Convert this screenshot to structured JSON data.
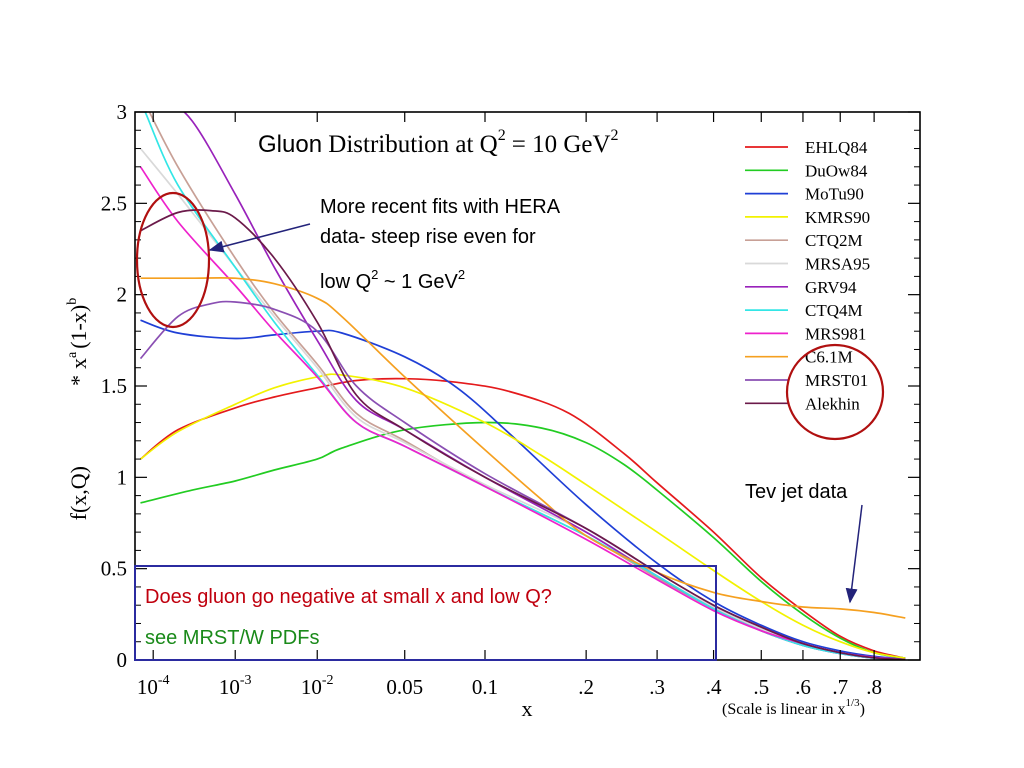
{
  "chart_data": {
    "type": "line",
    "title": {
      "word": "Gluon",
      "rest": "Distribution at Q",
      "sup": "2",
      "tail": "= 10 GeV",
      "sup2": "2"
    },
    "xlabel": "x",
    "x_scale_note": "(Scale is linear in x",
    "x_scale_note_sup": "1/3",
    "x_scale_note_close": ")",
    "ylabel": {
      "lower": "f(x,Q)",
      "star": "*",
      "x": "x",
      "a": "a",
      "mid": "(1-x)",
      "b": "b"
    },
    "xlim": [
      6e-05,
      0.95
    ],
    "ylim": [
      0,
      3
    ],
    "x_ticks": [
      {
        "value": 0.0001,
        "base": "10",
        "exp": "-4"
      },
      {
        "value": 0.001,
        "base": "10",
        "exp": "-3"
      },
      {
        "value": 0.01,
        "base": "10",
        "exp": "-2"
      },
      {
        "value": 0.05,
        "label": "0.05"
      },
      {
        "value": 0.1,
        "label": "0.1"
      },
      {
        "value": 0.2,
        "label": ".2"
      },
      {
        "value": 0.3,
        "label": ".3"
      },
      {
        "value": 0.4,
        "label": ".4"
      },
      {
        "value": 0.5,
        "label": ".5"
      },
      {
        "value": 0.6,
        "label": ".6"
      },
      {
        "value": 0.7,
        "label": ".7"
      },
      {
        "value": 0.8,
        "label": ".8"
      }
    ],
    "y_ticks": [
      {
        "value": 0,
        "label": "0"
      },
      {
        "value": 0.5,
        "label": "0.5"
      },
      {
        "value": 1,
        "label": "1"
      },
      {
        "value": 1.5,
        "label": "1.5"
      },
      {
        "value": 2,
        "label": "2"
      },
      {
        "value": 2.5,
        "label": "2.5"
      },
      {
        "value": 3,
        "label": "3"
      }
    ],
    "legend_position": "top-right",
    "series": [
      {
        "name": "EHLQ84",
        "color": "#e41a1c",
        "points": [
          [
            7e-05,
            1.1
          ],
          [
            0.0002,
            1.26
          ],
          [
            0.001,
            1.38
          ],
          [
            0.003,
            1.44
          ],
          [
            0.01,
            1.49
          ],
          [
            0.03,
            1.53
          ],
          [
            0.05,
            1.54
          ],
          [
            0.08,
            1.52
          ],
          [
            0.12,
            1.47
          ],
          [
            0.18,
            1.35
          ],
          [
            0.25,
            1.13
          ],
          [
            0.3,
            0.97
          ],
          [
            0.4,
            0.7
          ],
          [
            0.5,
            0.45
          ],
          [
            0.6,
            0.27
          ],
          [
            0.7,
            0.13
          ],
          [
            0.8,
            0.05
          ],
          [
            0.9,
            0.01
          ]
        ]
      },
      {
        "name": "DuOw84",
        "color": "#22cc22",
        "points": [
          [
            7e-05,
            0.86
          ],
          [
            0.0003,
            0.93
          ],
          [
            0.001,
            0.98
          ],
          [
            0.003,
            1.04
          ],
          [
            0.01,
            1.1
          ],
          [
            0.02,
            1.16
          ],
          [
            0.05,
            1.26
          ],
          [
            0.1,
            1.3
          ],
          [
            0.15,
            1.27
          ],
          [
            0.2,
            1.19
          ],
          [
            0.25,
            1.07
          ],
          [
            0.3,
            0.93
          ],
          [
            0.4,
            0.67
          ],
          [
            0.5,
            0.43
          ],
          [
            0.6,
            0.25
          ],
          [
            0.7,
            0.12
          ],
          [
            0.8,
            0.04
          ],
          [
            0.9,
            0.01
          ]
        ]
      },
      {
        "name": "MoTu90",
        "color": "#1f3fd6",
        "points": [
          [
            7e-05,
            1.86
          ],
          [
            0.0002,
            1.79
          ],
          [
            0.001,
            1.76
          ],
          [
            0.003,
            1.78
          ],
          [
            0.01,
            1.8
          ],
          [
            0.02,
            1.79
          ],
          [
            0.05,
            1.66
          ],
          [
            0.08,
            1.49
          ],
          [
            0.12,
            1.24
          ],
          [
            0.2,
            0.85
          ],
          [
            0.3,
            0.53
          ],
          [
            0.4,
            0.32
          ],
          [
            0.5,
            0.19
          ],
          [
            0.6,
            0.1
          ],
          [
            0.7,
            0.05
          ],
          [
            0.8,
            0.02
          ],
          [
            0.9,
            0.005
          ]
        ]
      },
      {
        "name": "KMRS90",
        "color": "#f2f200",
        "points": [
          [
            7e-05,
            1.1
          ],
          [
            0.0002,
            1.25
          ],
          [
            0.001,
            1.4
          ],
          [
            0.003,
            1.49
          ],
          [
            0.01,
            1.55
          ],
          [
            0.02,
            1.56
          ],
          [
            0.05,
            1.49
          ],
          [
            0.1,
            1.3
          ],
          [
            0.15,
            1.12
          ],
          [
            0.2,
            0.96
          ],
          [
            0.3,
            0.7
          ],
          [
            0.4,
            0.49
          ],
          [
            0.5,
            0.32
          ],
          [
            0.6,
            0.19
          ],
          [
            0.7,
            0.1
          ],
          [
            0.8,
            0.04
          ],
          [
            0.9,
            0.01
          ]
        ]
      },
      {
        "name": "CTQ2M",
        "color": "#c8a096",
        "points": [
          [
            7e-05,
            3.1
          ],
          [
            0.0002,
            2.7
          ],
          [
            0.001,
            2.2
          ],
          [
            0.003,
            1.9
          ],
          [
            0.01,
            1.62
          ],
          [
            0.03,
            1.35
          ],
          [
            0.05,
            1.2
          ],
          [
            0.1,
            0.95
          ],
          [
            0.2,
            0.68
          ],
          [
            0.3,
            0.45
          ],
          [
            0.4,
            0.28
          ],
          [
            0.5,
            0.16
          ],
          [
            0.6,
            0.08
          ],
          [
            0.7,
            0.035
          ],
          [
            0.8,
            0.01
          ],
          [
            0.9,
            0.002
          ]
        ]
      },
      {
        "name": "MRSA95",
        "color": "#d9d9d9",
        "points": [
          [
            7e-05,
            2.8
          ],
          [
            0.0002,
            2.55
          ],
          [
            0.001,
            2.15
          ],
          [
            0.003,
            1.88
          ],
          [
            0.01,
            1.6
          ],
          [
            0.03,
            1.33
          ],
          [
            0.05,
            1.19
          ],
          [
            0.1,
            0.96
          ],
          [
            0.2,
            0.7
          ],
          [
            0.3,
            0.46
          ],
          [
            0.4,
            0.29
          ],
          [
            0.5,
            0.17
          ],
          [
            0.6,
            0.09
          ],
          [
            0.7,
            0.04
          ],
          [
            0.8,
            0.01
          ],
          [
            0.9,
            0.002
          ]
        ]
      },
      {
        "name": "GRV94",
        "color": "#9922bb",
        "points": [
          [
            0.00012,
            3.1
          ],
          [
            0.0003,
            2.95
          ],
          [
            0.001,
            2.55
          ],
          [
            0.003,
            2.15
          ],
          [
            0.01,
            1.75
          ],
          [
            0.03,
            1.42
          ],
          [
            0.05,
            1.26
          ],
          [
            0.1,
            1.0
          ],
          [
            0.2,
            0.7
          ],
          [
            0.3,
            0.46
          ],
          [
            0.4,
            0.28
          ],
          [
            0.5,
            0.16
          ],
          [
            0.6,
            0.08
          ],
          [
            0.7,
            0.035
          ],
          [
            0.8,
            0.01
          ],
          [
            0.9,
            0.002
          ]
        ]
      },
      {
        "name": "CTQ4M",
        "color": "#33e6e6",
        "points": [
          [
            8e-05,
            3.0
          ],
          [
            0.0002,
            2.6
          ],
          [
            0.001,
            2.15
          ],
          [
            0.003,
            1.85
          ],
          [
            0.01,
            1.56
          ],
          [
            0.03,
            1.3
          ],
          [
            0.05,
            1.17
          ],
          [
            0.1,
            0.95
          ],
          [
            0.2,
            0.68
          ],
          [
            0.3,
            0.46
          ],
          [
            0.4,
            0.28
          ],
          [
            0.5,
            0.16
          ],
          [
            0.6,
            0.08
          ],
          [
            0.7,
            0.035
          ],
          [
            0.8,
            0.01
          ],
          [
            0.9,
            0.002
          ]
        ]
      },
      {
        "name": "MRS981",
        "color": "#ee22cc",
        "points": [
          [
            7e-05,
            2.7
          ],
          [
            0.0002,
            2.4
          ],
          [
            0.001,
            2.05
          ],
          [
            0.003,
            1.8
          ],
          [
            0.01,
            1.55
          ],
          [
            0.03,
            1.3
          ],
          [
            0.05,
            1.17
          ],
          [
            0.1,
            0.95
          ],
          [
            0.2,
            0.66
          ],
          [
            0.3,
            0.44
          ],
          [
            0.4,
            0.27
          ],
          [
            0.5,
            0.16
          ],
          [
            0.6,
            0.09
          ],
          [
            0.7,
            0.04
          ],
          [
            0.8,
            0.015
          ],
          [
            0.9,
            0.003
          ]
        ]
      },
      {
        "name": "C6.1M",
        "color": "#f5a020",
        "points": [
          [
            7e-05,
            2.09
          ],
          [
            0.0003,
            2.09
          ],
          [
            0.001,
            2.09
          ],
          [
            0.003,
            2.06
          ],
          [
            0.01,
            1.98
          ],
          [
            0.02,
            1.88
          ],
          [
            0.05,
            1.55
          ],
          [
            0.1,
            1.15
          ],
          [
            0.15,
            0.88
          ],
          [
            0.2,
            0.68
          ],
          [
            0.3,
            0.48
          ],
          [
            0.4,
            0.37
          ],
          [
            0.5,
            0.32
          ],
          [
            0.6,
            0.29
          ],
          [
            0.7,
            0.28
          ],
          [
            0.8,
            0.26
          ],
          [
            0.9,
            0.23
          ]
        ]
      },
      {
        "name": "MRST01",
        "color": "#8a4fb3",
        "points": [
          [
            7e-05,
            1.65
          ],
          [
            0.0002,
            1.88
          ],
          [
            0.0005,
            1.95
          ],
          [
            0.001,
            1.96
          ],
          [
            0.003,
            1.92
          ],
          [
            0.01,
            1.8
          ],
          [
            0.03,
            1.5
          ],
          [
            0.05,
            1.3
          ],
          [
            0.1,
            1.02
          ],
          [
            0.2,
            0.72
          ],
          [
            0.3,
            0.48
          ],
          [
            0.4,
            0.3
          ],
          [
            0.5,
            0.18
          ],
          [
            0.6,
            0.09
          ],
          [
            0.7,
            0.04
          ],
          [
            0.8,
            0.012
          ],
          [
            0.9,
            0.002
          ]
        ]
      },
      {
        "name": "Alekhin",
        "color": "#6b1a4a",
        "points": [
          [
            7e-05,
            2.35
          ],
          [
            0.0002,
            2.45
          ],
          [
            0.0005,
            2.46
          ],
          [
            0.001,
            2.42
          ],
          [
            0.003,
            2.2
          ],
          [
            0.01,
            1.85
          ],
          [
            0.03,
            1.45
          ],
          [
            0.05,
            1.26
          ],
          [
            0.1,
            1.0
          ],
          [
            0.2,
            0.72
          ],
          [
            0.3,
            0.48
          ],
          [
            0.4,
            0.3
          ],
          [
            0.5,
            0.18
          ],
          [
            0.6,
            0.09
          ],
          [
            0.7,
            0.04
          ],
          [
            0.8,
            0.012
          ],
          [
            0.9,
            0.002
          ]
        ]
      }
    ],
    "annotations": {
      "hera_line1": "More recent fits with HERA",
      "hera_line2": "data- steep rise even for",
      "hera_line3_a": "low Q",
      "hera_line3_sup": "2",
      "hera_line3_b": " ~ 1 GeV",
      "hera_line3_sup2": "2",
      "tev": "Tev jet data",
      "question": "Does gluon go negative at small x and low Q?",
      "see": "see MRST/W PDFs"
    },
    "colors": {
      "annotation_red": "#c0000e",
      "annotation_green": "#1a8a1a",
      "box_blue": "#2b2ba0",
      "arrow_navy": "#23237a",
      "ellipse": "#b01010"
    }
  }
}
